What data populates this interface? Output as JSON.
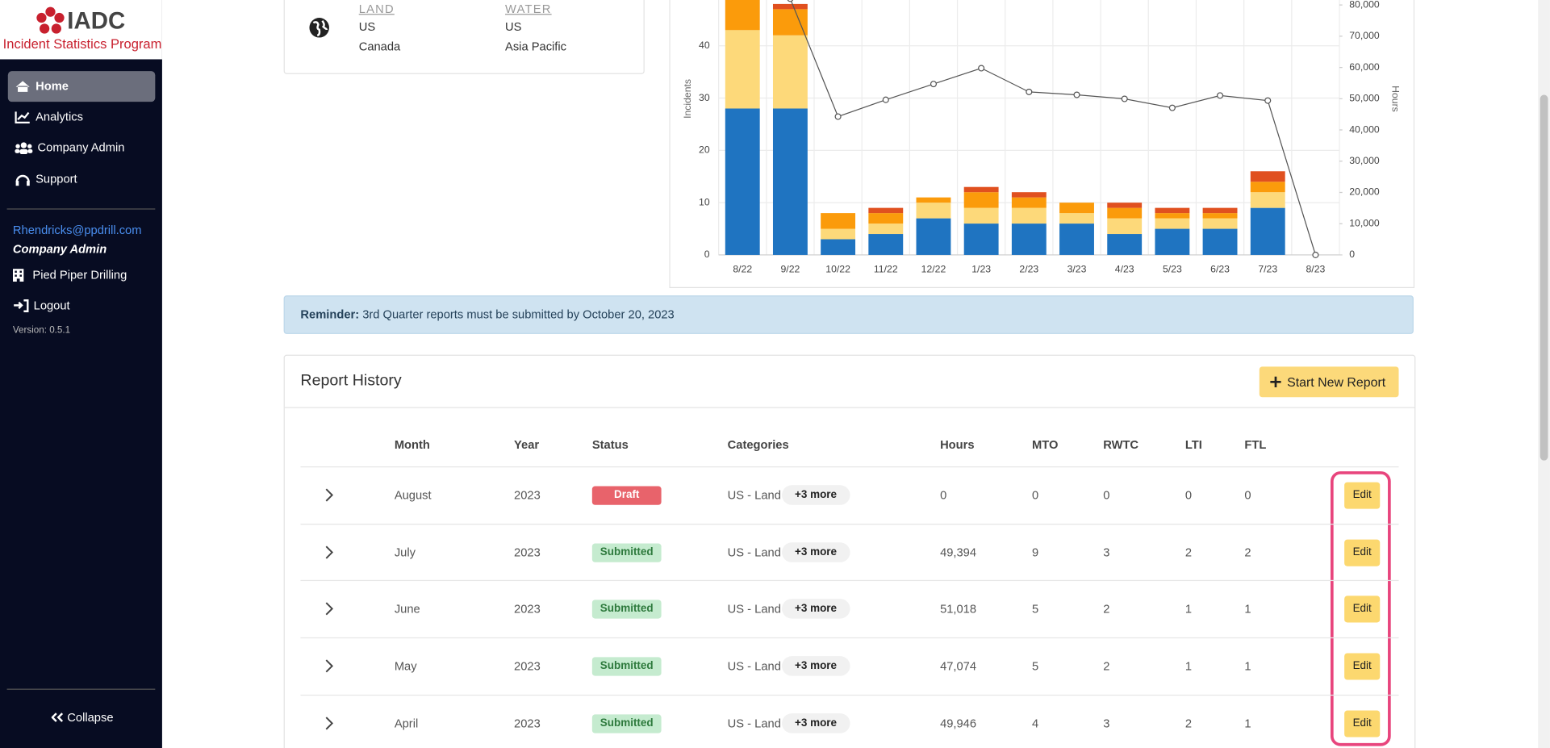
{
  "sidebar": {
    "logo": "IADC",
    "program": "Incident Statistics Program",
    "nav": [
      "Home",
      "Analytics",
      "Company Admin",
      "Support"
    ],
    "user_email": "Rhendricks@ppdrill.com",
    "role": "Company Admin",
    "company": "Pied Piper Drilling",
    "logout": "Logout",
    "version": "Version: 0.5.1",
    "collapse": "Collapse"
  },
  "regions": {
    "headers": [
      "LAND",
      "WATER"
    ],
    "land": [
      "US",
      "Canada"
    ],
    "water": [
      "US",
      "Asia Pacific"
    ]
  },
  "chart": {
    "type": "bar",
    "categories": [
      "8/22",
      "9/22",
      "10/22",
      "11/22",
      "12/22",
      "1/23",
      "2/23",
      "3/23",
      "4/23",
      "5/23",
      "6/23",
      "7/23",
      "8/23"
    ],
    "series": [
      {
        "color": "#1f74c1",
        "values": [
          28,
          28,
          3,
          4,
          7,
          6,
          6,
          6,
          4,
          5,
          5,
          9,
          0
        ]
      },
      {
        "color": "#fdd97a",
        "values": [
          15,
          14,
          2,
          2,
          3,
          3,
          3,
          2,
          3,
          2,
          2,
          3,
          0
        ]
      },
      {
        "color": "#fb9b0b",
        "values": [
          6,
          5,
          3,
          2,
          1,
          3,
          2,
          2,
          2,
          1,
          1,
          2,
          0
        ]
      },
      {
        "color": "#e0501f",
        "values": [
          0,
          1,
          0,
          1,
          0,
          1,
          1,
          0,
          1,
          1,
          1,
          2,
          0
        ]
      }
    ],
    "line": {
      "type": "line",
      "axis": "y2",
      "color": "#555555",
      "values": [
        null,
        82000,
        44270,
        49640,
        54700,
        59760,
        52170,
        51230,
        49946,
        47074,
        51018,
        49394,
        0
      ]
    },
    "ylabel": "Incidents",
    "y2label": "Hours",
    "ylim": [
      0,
      48
    ],
    "yticks": [
      0,
      10,
      20,
      30,
      40
    ],
    "y2lim": [
      0,
      80000
    ],
    "y2ticks": [
      0,
      {
        "value": 10000,
        "label": "10,000"
      },
      {
        "value": 20000,
        "label": "20,000"
      },
      {
        "value": 30000,
        "label": "30,000"
      },
      {
        "value": 40000,
        "label": "40,000"
      },
      {
        "value": 50000,
        "label": "50,000"
      },
      {
        "value": 60000,
        "label": "60,000"
      },
      {
        "value": 70000,
        "label": "70,000"
      },
      {
        "value": 80000,
        "label": "80,000"
      }
    ],
    "grid": true
  },
  "reminder": {
    "label": "Reminder:",
    "text": "3rd Quarter reports must be submitted by October 20, 2023"
  },
  "report_history": {
    "title": "Report History",
    "button": "Start New Report",
    "columns": [
      "Month",
      "Year",
      "Status",
      "Categories",
      "Hours",
      "MTO",
      "RWTC",
      "LTI",
      "FTL"
    ],
    "rows": [
      {
        "month": "August",
        "year": 2023,
        "status": "Draft",
        "category": "US - Land",
        "more": "+3 more",
        "hours": "0",
        "mto": 0,
        "rwtc": 0,
        "lti": 0,
        "ftl": 0,
        "action": "Edit"
      },
      {
        "month": "July",
        "year": 2023,
        "status": "Submitted",
        "category": "US - Land",
        "more": "+3 more",
        "hours": "49,394",
        "mto": 9,
        "rwtc": 3,
        "lti": 2,
        "ftl": 2,
        "action": "Edit"
      },
      {
        "month": "June",
        "year": 2023,
        "status": "Submitted",
        "category": "US - Land",
        "more": "+3 more",
        "hours": "51,018",
        "mto": 5,
        "rwtc": 2,
        "lti": 1,
        "ftl": 1,
        "action": "Edit"
      },
      {
        "month": "May",
        "year": 2023,
        "status": "Submitted",
        "category": "US - Land",
        "more": "+3 more",
        "hours": "47,074",
        "mto": 5,
        "rwtc": 2,
        "lti": 1,
        "ftl": 1,
        "action": "Edit"
      },
      {
        "month": "April",
        "year": 2023,
        "status": "Submitted",
        "category": "US - Land",
        "more": "+3 more",
        "hours": "49,946",
        "mto": 4,
        "rwtc": 3,
        "lti": 2,
        "ftl": 1,
        "action": "Edit"
      }
    ]
  }
}
